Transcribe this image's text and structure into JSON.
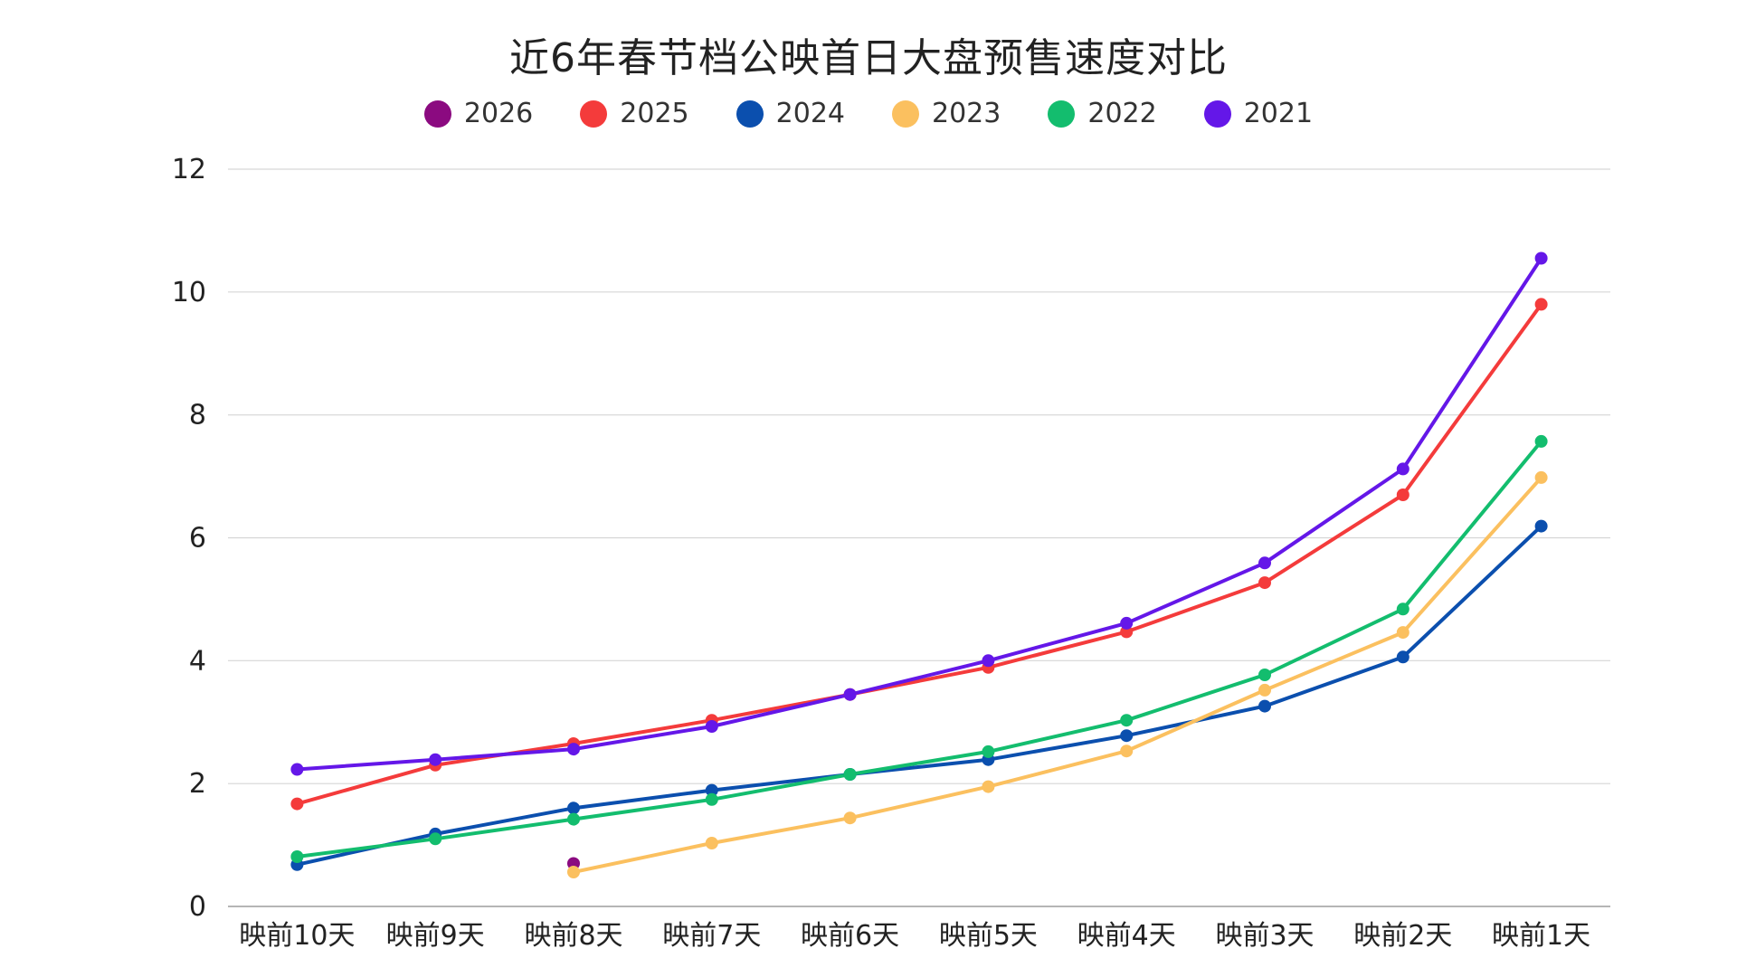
{
  "chart_data": {
    "type": "line",
    "title": "近6年春节档公映首日大盘预售速度对比",
    "xlabel": "",
    "ylabel": "",
    "ylim": [
      0,
      12
    ],
    "yticks": [
      "0",
      "2",
      "4",
      "6",
      "8",
      "10",
      "12"
    ],
    "grid": true,
    "legend_position": "top-center",
    "categories": [
      "映前10天",
      "映前9天",
      "映前8天",
      "映前7天",
      "映前6天",
      "映前5天",
      "映前4天",
      "映前3天",
      "映前2天",
      "映前1天"
    ],
    "series": [
      {
        "name": "2026",
        "color": "#8B0A80",
        "values": [
          null,
          null,
          0.7,
          null,
          null,
          null,
          null,
          null,
          null,
          null
        ]
      },
      {
        "name": "2025",
        "color": "#F43B3B",
        "values": [
          1.67,
          2.3,
          2.65,
          3.03,
          3.45,
          3.89,
          4.47,
          5.27,
          6.7,
          9.8
        ]
      },
      {
        "name": "2024",
        "color": "#0B4FAE",
        "values": [
          0.68,
          1.18,
          1.6,
          1.89,
          2.15,
          2.39,
          2.78,
          3.26,
          4.06,
          6.19
        ]
      },
      {
        "name": "2023",
        "color": "#FBC05F",
        "values": [
          null,
          null,
          0.56,
          1.03,
          1.44,
          1.95,
          2.53,
          3.52,
          4.46,
          6.98
        ]
      },
      {
        "name": "2022",
        "color": "#13BD6E",
        "values": [
          0.81,
          1.1,
          1.42,
          1.74,
          2.15,
          2.52,
          3.03,
          3.77,
          4.84,
          7.57
        ]
      },
      {
        "name": "2021",
        "color": "#6417E8",
        "values": [
          2.23,
          2.39,
          2.56,
          2.93,
          3.45,
          4.0,
          4.61,
          5.59,
          7.12,
          10.55
        ]
      }
    ]
  }
}
